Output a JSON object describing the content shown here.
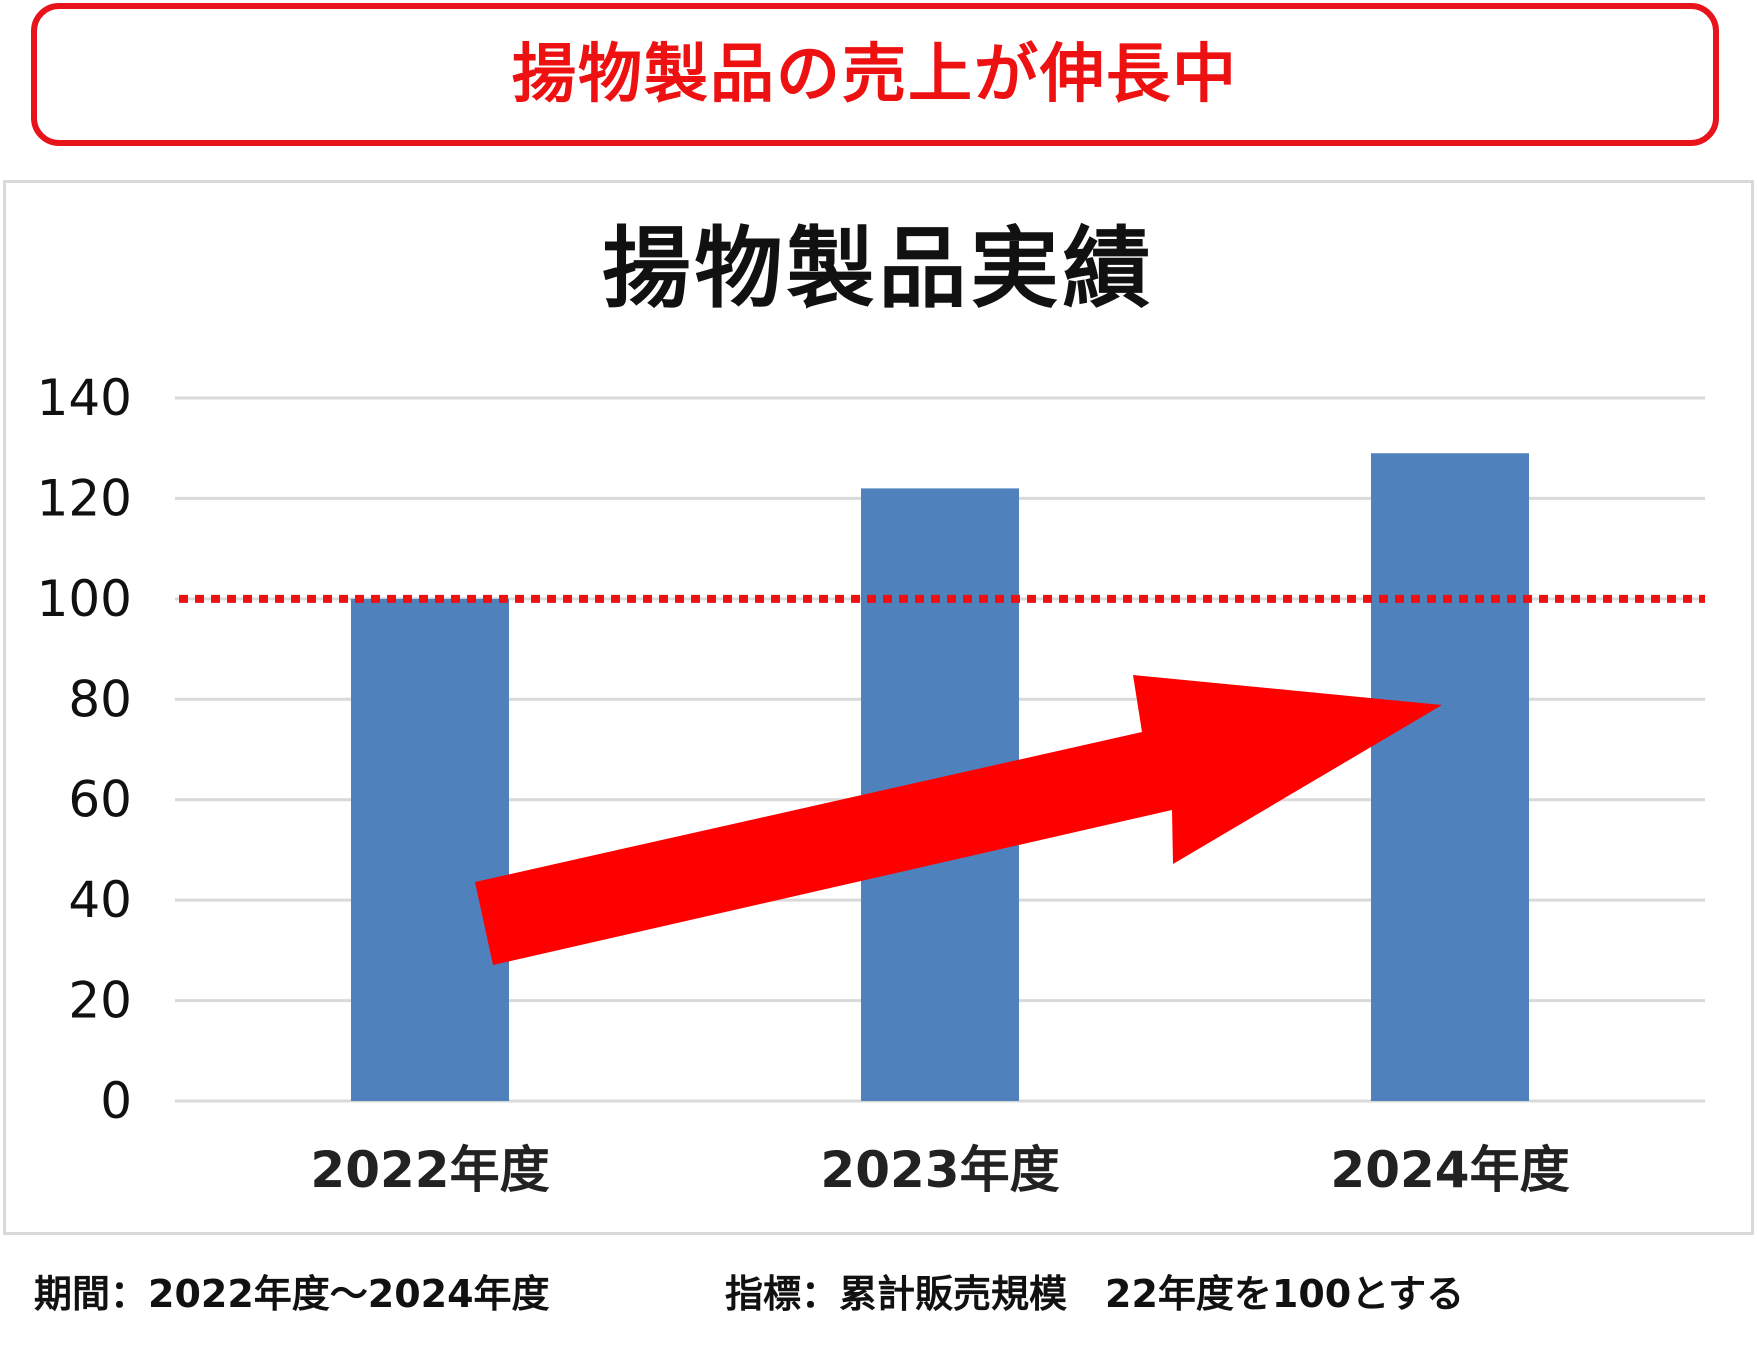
{
  "headline": "揚物製品の売上が伸長中",
  "colors": {
    "headline_red": "#ee1111",
    "bar_blue": "#4f81bd",
    "reference_line_red": "#ee1111",
    "arrow_red": "#ff0000",
    "gridline_gray": "#d9d9d9"
  },
  "chart_data": {
    "type": "bar",
    "title": "揚物製品実績",
    "categories": [
      "2022年度",
      "2023年度",
      "2024年度"
    ],
    "values": [
      100,
      122,
      129
    ],
    "ylim": [
      0,
      140
    ],
    "yticks": [
      0,
      20,
      40,
      60,
      80,
      100,
      120,
      140
    ],
    "grid": true,
    "reference_line": {
      "value": 100,
      "style": "dotted",
      "color": "#ee1111"
    },
    "annotation": "upward-trend-arrow"
  },
  "footer": {
    "period": "期間：2022年度～2024年度",
    "metric": "指標：累計販売規模　22年度を100とする"
  }
}
